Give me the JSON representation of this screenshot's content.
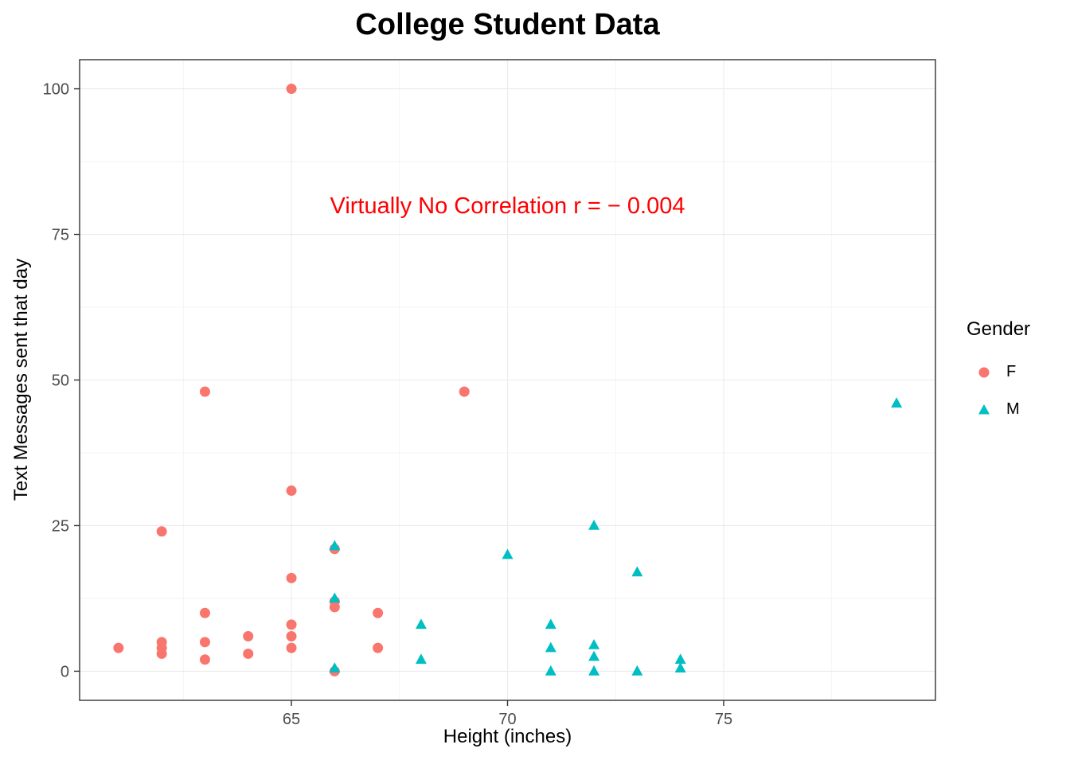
{
  "chart_data": {
    "type": "scatter",
    "title": "College Student Data",
    "xlabel": "Height (inches)",
    "ylabel": "Text Messages sent that day",
    "xlim": [
      60.1,
      79.9
    ],
    "ylim": [
      -5,
      105
    ],
    "x_ticks": [
      65,
      70,
      75
    ],
    "y_ticks": [
      0,
      25,
      50,
      75,
      100
    ],
    "grid": true,
    "panel_border_color": "#333333",
    "gridline_color": "#EBEBEB",
    "annotation": {
      "text": "Virtually No Correlation r = − 0.004",
      "x": 70,
      "y": 80,
      "color": "#FF0000"
    },
    "legend": {
      "title": "Gender",
      "position": "right"
    },
    "series": [
      {
        "name": "F",
        "marker": "circle",
        "color": "#F8766D",
        "points": [
          [
            61,
            4
          ],
          [
            62,
            24
          ],
          [
            62,
            5
          ],
          [
            62,
            4
          ],
          [
            62,
            3
          ],
          [
            63,
            48
          ],
          [
            63,
            10
          ],
          [
            63,
            5
          ],
          [
            63,
            2
          ],
          [
            64,
            6
          ],
          [
            64,
            3
          ],
          [
            65,
            100
          ],
          [
            65,
            31
          ],
          [
            65,
            16
          ],
          [
            65,
            8
          ],
          [
            65,
            6
          ],
          [
            65,
            4
          ],
          [
            66,
            21
          ],
          [
            66,
            12
          ],
          [
            66,
            11
          ],
          [
            66,
            0
          ],
          [
            67,
            10
          ],
          [
            67,
            4
          ],
          [
            69,
            48
          ]
        ]
      },
      {
        "name": "M",
        "marker": "triangle",
        "color": "#00BFC4",
        "points": [
          [
            66,
            21.5
          ],
          [
            66,
            12.5
          ],
          [
            66,
            0.5
          ],
          [
            68,
            8
          ],
          [
            68,
            2
          ],
          [
            70,
            20
          ],
          [
            71,
            8
          ],
          [
            71,
            4
          ],
          [
            71,
            0
          ],
          [
            72,
            25
          ],
          [
            72,
            4.5
          ],
          [
            72,
            2.5
          ],
          [
            72,
            0
          ],
          [
            73,
            17
          ],
          [
            73,
            0
          ],
          [
            74,
            2
          ],
          [
            74,
            0.5
          ],
          [
            79,
            46
          ]
        ]
      }
    ]
  }
}
